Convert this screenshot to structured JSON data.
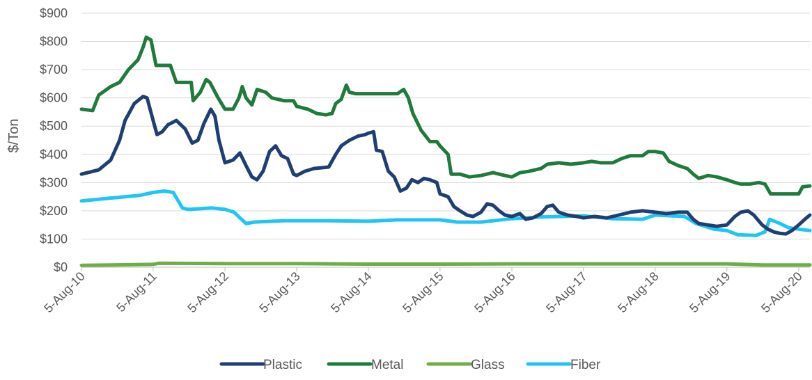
{
  "chart_data": {
    "type": "line",
    "ylabel": "$/Ton",
    "xlabel": "",
    "title": "",
    "ylim": [
      0,
      900
    ],
    "y_ticks": [
      "$0",
      "$100",
      "$200",
      "$300",
      "$400",
      "$500",
      "$600",
      "$700",
      "$800",
      "$900"
    ],
    "y_tick_values": [
      0,
      100,
      200,
      300,
      400,
      500,
      600,
      700,
      800,
      900
    ],
    "x_ticks": [
      "5-Aug-10",
      "5-Aug-11",
      "5-Aug-12",
      "5-Aug-13",
      "5-Aug-14",
      "5-Aug-15",
      "5-Aug-16",
      "5-Aug-17",
      "5-Aug-18",
      "5-Aug-19",
      "5-Aug-20"
    ],
    "x_tick_values": [
      "2010-08-05",
      "2011-08-05",
      "2012-08-05",
      "2013-08-05",
      "2014-08-05",
      "2015-08-05",
      "2016-08-05",
      "2017-08-05",
      "2018-08-05",
      "2019-08-05",
      "2020-08-05"
    ],
    "xlim": [
      "2010-08-05",
      "2020-10-01"
    ],
    "grid": "horizontal",
    "legend_position": "bottom",
    "series": [
      {
        "name": "Plastic",
        "color": "#1F3F73",
        "points": [
          [
            "2010-08-05",
            330
          ],
          [
            "2010-11-01",
            345
          ],
          [
            "2011-01-01",
            380
          ],
          [
            "2011-02-15",
            450
          ],
          [
            "2011-03-15",
            520
          ],
          [
            "2011-05-01",
            580
          ],
          [
            "2011-06-15",
            605
          ],
          [
            "2011-07-05",
            600
          ],
          [
            "2011-08-05",
            520
          ],
          [
            "2011-08-25",
            470
          ],
          [
            "2011-09-20",
            480
          ],
          [
            "2011-10-20",
            505
          ],
          [
            "2011-12-01",
            520
          ],
          [
            "2012-01-15",
            490
          ],
          [
            "2012-02-20",
            440
          ],
          [
            "2012-03-20",
            450
          ],
          [
            "2012-04-20",
            510
          ],
          [
            "2012-05-25",
            560
          ],
          [
            "2012-06-15",
            535
          ],
          [
            "2012-07-05",
            450
          ],
          [
            "2012-08-05",
            370
          ],
          [
            "2012-09-15",
            380
          ],
          [
            "2012-10-20",
            405
          ],
          [
            "2012-11-20",
            360
          ],
          [
            "2012-12-20",
            320
          ],
          [
            "2013-01-15",
            310
          ],
          [
            "2013-02-15",
            340
          ],
          [
            "2013-03-20",
            410
          ],
          [
            "2013-04-20",
            430
          ],
          [
            "2013-05-20",
            395
          ],
          [
            "2013-06-20",
            385
          ],
          [
            "2013-07-20",
            330
          ],
          [
            "2013-08-05",
            325
          ],
          [
            "2013-09-15",
            340
          ],
          [
            "2013-11-01",
            350
          ],
          [
            "2014-01-15",
            355
          ],
          [
            "2014-02-20",
            400
          ],
          [
            "2014-03-20",
            430
          ],
          [
            "2014-05-01",
            450
          ],
          [
            "2014-06-15",
            465
          ],
          [
            "2014-07-20",
            470
          ],
          [
            "2014-08-05",
            475
          ],
          [
            "2014-09-01",
            480
          ],
          [
            "2014-09-15",
            415
          ],
          [
            "2014-10-15",
            410
          ],
          [
            "2014-11-15",
            340
          ],
          [
            "2014-12-15",
            320
          ],
          [
            "2015-01-15",
            270
          ],
          [
            "2015-02-15",
            280
          ],
          [
            "2015-03-15",
            310
          ],
          [
            "2015-04-15",
            300
          ],
          [
            "2015-05-15",
            315
          ],
          [
            "2015-06-15",
            310
          ],
          [
            "2015-07-20",
            300
          ],
          [
            "2015-08-05",
            260
          ],
          [
            "2015-09-15",
            250
          ],
          [
            "2015-10-15",
            215
          ],
          [
            "2015-11-15",
            200
          ],
          [
            "2015-12-20",
            185
          ],
          [
            "2016-01-20",
            180
          ],
          [
            "2016-03-01",
            195
          ],
          [
            "2016-04-01",
            225
          ],
          [
            "2016-05-01",
            220
          ],
          [
            "2016-06-01",
            200
          ],
          [
            "2016-07-01",
            185
          ],
          [
            "2016-08-05",
            180
          ],
          [
            "2016-09-15",
            190
          ],
          [
            "2016-10-15",
            170
          ],
          [
            "2016-11-20",
            175
          ],
          [
            "2017-01-01",
            190
          ],
          [
            "2017-02-01",
            215
          ],
          [
            "2017-03-01",
            220
          ],
          [
            "2017-04-01",
            195
          ],
          [
            "2017-05-15",
            185
          ],
          [
            "2017-07-01",
            180
          ],
          [
            "2017-08-05",
            175
          ],
          [
            "2017-10-01",
            180
          ],
          [
            "2017-12-01",
            175
          ],
          [
            "2018-02-01",
            185
          ],
          [
            "2018-04-01",
            195
          ],
          [
            "2018-06-01",
            200
          ],
          [
            "2018-08-05",
            195
          ],
          [
            "2018-10-01",
            190
          ],
          [
            "2018-12-01",
            195
          ],
          [
            "2019-01-15",
            195
          ],
          [
            "2019-02-15",
            170
          ],
          [
            "2019-03-15",
            155
          ],
          [
            "2019-05-01",
            150
          ],
          [
            "2019-06-15",
            145
          ],
          [
            "2019-08-05",
            150
          ],
          [
            "2019-09-15",
            180
          ],
          [
            "2019-10-15",
            195
          ],
          [
            "2019-11-20",
            200
          ],
          [
            "2019-12-20",
            185
          ],
          [
            "2020-02-01",
            150
          ],
          [
            "2020-03-01",
            135
          ],
          [
            "2020-04-01",
            125
          ],
          [
            "2020-05-01",
            120
          ],
          [
            "2020-06-01",
            118
          ],
          [
            "2020-07-01",
            130
          ],
          [
            "2020-08-05",
            150
          ],
          [
            "2020-09-05",
            170
          ],
          [
            "2020-10-01",
            185
          ]
        ]
      },
      {
        "name": "Metal",
        "color": "#1E7B3C",
        "points": [
          [
            "2010-08-05",
            560
          ],
          [
            "2010-10-01",
            555
          ],
          [
            "2010-11-01",
            610
          ],
          [
            "2011-01-01",
            640
          ],
          [
            "2011-02-15",
            655
          ],
          [
            "2011-04-01",
            700
          ],
          [
            "2011-05-20",
            735
          ],
          [
            "2011-06-15",
            780
          ],
          [
            "2011-07-01",
            815
          ],
          [
            "2011-07-25",
            805
          ],
          [
            "2011-08-20",
            715
          ],
          [
            "2011-10-01",
            715
          ],
          [
            "2011-11-01",
            715
          ],
          [
            "2011-12-01",
            655
          ],
          [
            "2012-01-01",
            655
          ],
          [
            "2012-02-15",
            655
          ],
          [
            "2012-02-25",
            590
          ],
          [
            "2012-04-01",
            620
          ],
          [
            "2012-05-01",
            665
          ],
          [
            "2012-05-20",
            655
          ],
          [
            "2012-07-01",
            600
          ],
          [
            "2012-08-05",
            560
          ],
          [
            "2012-09-15",
            560
          ],
          [
            "2012-10-15",
            600
          ],
          [
            "2012-11-01",
            640
          ],
          [
            "2012-11-20",
            600
          ],
          [
            "2012-12-20",
            575
          ],
          [
            "2013-01-15",
            630
          ],
          [
            "2013-03-01",
            620
          ],
          [
            "2013-04-01",
            600
          ],
          [
            "2013-06-01",
            590
          ],
          [
            "2013-07-20",
            590
          ],
          [
            "2013-08-05",
            570
          ],
          [
            "2013-10-01",
            560
          ],
          [
            "2013-11-15",
            545
          ],
          [
            "2014-01-01",
            540
          ],
          [
            "2014-02-01",
            545
          ],
          [
            "2014-02-20",
            580
          ],
          [
            "2014-03-20",
            595
          ],
          [
            "2014-04-15",
            645
          ],
          [
            "2014-05-01",
            620
          ],
          [
            "2014-06-01",
            615
          ],
          [
            "2014-08-05",
            615
          ],
          [
            "2014-10-01",
            615
          ],
          [
            "2014-12-01",
            615
          ],
          [
            "2015-01-01",
            615
          ],
          [
            "2015-02-01",
            630
          ],
          [
            "2015-02-25",
            600
          ],
          [
            "2015-03-20",
            545
          ],
          [
            "2015-05-01",
            485
          ],
          [
            "2015-06-15",
            445
          ],
          [
            "2015-07-20",
            445
          ],
          [
            "2015-08-05",
            430
          ],
          [
            "2015-09-15",
            400
          ],
          [
            "2015-10-01",
            330
          ],
          [
            "2015-11-15",
            330
          ],
          [
            "2016-01-01",
            320
          ],
          [
            "2016-03-01",
            325
          ],
          [
            "2016-05-01",
            335
          ],
          [
            "2016-06-01",
            330
          ],
          [
            "2016-07-01",
            325
          ],
          [
            "2016-08-05",
            320
          ],
          [
            "2016-09-15",
            335
          ],
          [
            "2016-11-01",
            340
          ],
          [
            "2017-01-01",
            350
          ],
          [
            "2017-02-01",
            365
          ],
          [
            "2017-04-01",
            370
          ],
          [
            "2017-06-01",
            365
          ],
          [
            "2017-08-05",
            370
          ],
          [
            "2017-09-15",
            375
          ],
          [
            "2017-11-01",
            370
          ],
          [
            "2018-01-01",
            370
          ],
          [
            "2018-02-15",
            385
          ],
          [
            "2018-04-01",
            395
          ],
          [
            "2018-06-01",
            395
          ],
          [
            "2018-07-01",
            410
          ],
          [
            "2018-08-05",
            410
          ],
          [
            "2018-09-15",
            405
          ],
          [
            "2018-10-15",
            375
          ],
          [
            "2018-12-01",
            360
          ],
          [
            "2019-01-15",
            350
          ],
          [
            "2019-02-15",
            330
          ],
          [
            "2019-03-15",
            315
          ],
          [
            "2019-05-01",
            325
          ],
          [
            "2019-06-15",
            320
          ],
          [
            "2019-08-05",
            310
          ],
          [
            "2019-09-15",
            300
          ],
          [
            "2019-10-15",
            295
          ],
          [
            "2019-12-01",
            295
          ],
          [
            "2020-01-15",
            300
          ],
          [
            "2020-02-15",
            295
          ],
          [
            "2020-03-15",
            260
          ],
          [
            "2020-05-01",
            260
          ],
          [
            "2020-07-01",
            260
          ],
          [
            "2020-08-05",
            260
          ],
          [
            "2020-08-25",
            285
          ],
          [
            "2020-10-01",
            288
          ]
        ]
      },
      {
        "name": "Glass",
        "color": "#70AD47",
        "points": [
          [
            "2010-08-05",
            7
          ],
          [
            "2011-01-01",
            8
          ],
          [
            "2011-08-05",
            10
          ],
          [
            "2011-09-01",
            14
          ],
          [
            "2012-08-05",
            13
          ],
          [
            "2013-08-05",
            13
          ],
          [
            "2014-08-05",
            11
          ],
          [
            "2015-08-05",
            11
          ],
          [
            "2016-08-05",
            12
          ],
          [
            "2017-08-05",
            12
          ],
          [
            "2018-08-05",
            12
          ],
          [
            "2019-08-05",
            12
          ],
          [
            "2020-02-01",
            8
          ],
          [
            "2020-10-01",
            8
          ]
        ]
      },
      {
        "name": "Fiber",
        "color": "#21C5F3",
        "points": [
          [
            "2010-08-05",
            235
          ],
          [
            "2011-01-01",
            245
          ],
          [
            "2011-06-01",
            255
          ],
          [
            "2011-08-05",
            265
          ],
          [
            "2011-10-01",
            270
          ],
          [
            "2011-11-15",
            265
          ],
          [
            "2012-01-01",
            210
          ],
          [
            "2012-02-01",
            205
          ],
          [
            "2012-06-01",
            210
          ],
          [
            "2012-08-05",
            205
          ],
          [
            "2012-09-20",
            195
          ],
          [
            "2012-10-20",
            175
          ],
          [
            "2012-11-20",
            155
          ],
          [
            "2013-01-01",
            160
          ],
          [
            "2013-06-01",
            165
          ],
          [
            "2013-08-05",
            165
          ],
          [
            "2014-01-01",
            165
          ],
          [
            "2014-08-05",
            163
          ],
          [
            "2015-01-01",
            168
          ],
          [
            "2015-08-05",
            168
          ],
          [
            "2015-11-01",
            160
          ],
          [
            "2016-03-01",
            160
          ],
          [
            "2016-08-05",
            172
          ],
          [
            "2017-01-01",
            178
          ],
          [
            "2017-08-05",
            182
          ],
          [
            "2018-01-01",
            172
          ],
          [
            "2018-06-01",
            170
          ],
          [
            "2018-08-05",
            185
          ],
          [
            "2019-01-01",
            180
          ],
          [
            "2019-03-01",
            155
          ],
          [
            "2019-06-01",
            135
          ],
          [
            "2019-08-05",
            130
          ],
          [
            "2019-10-01",
            115
          ],
          [
            "2020-01-01",
            113
          ],
          [
            "2020-02-15",
            125
          ],
          [
            "2020-03-10",
            170
          ],
          [
            "2020-05-01",
            155
          ],
          [
            "2020-06-15",
            140
          ],
          [
            "2020-08-05",
            135
          ],
          [
            "2020-10-01",
            130
          ]
        ]
      }
    ]
  }
}
